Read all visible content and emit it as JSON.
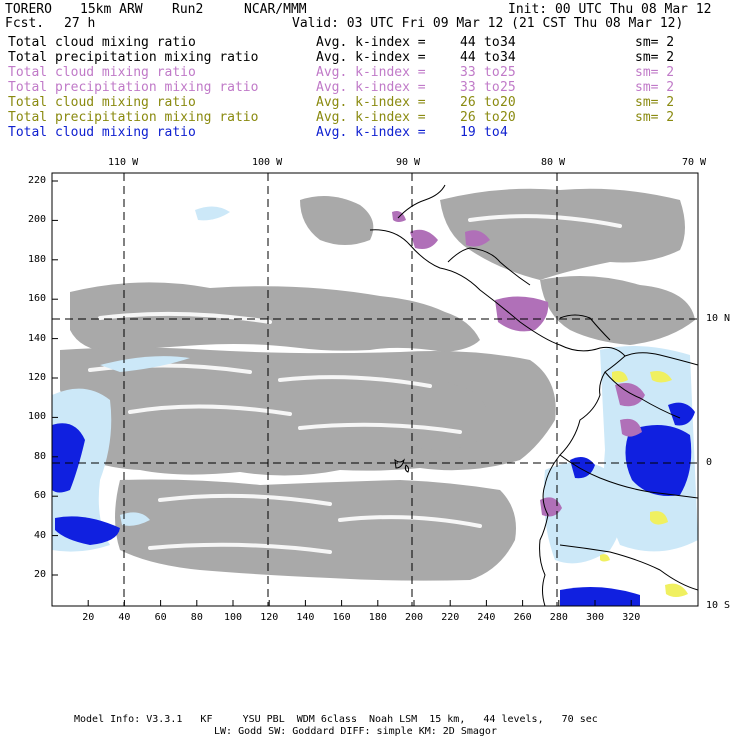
{
  "header": {
    "model": "TORERO",
    "resolution": "15km ARW",
    "run": "Run2",
    "org": "NCAR/MMM",
    "init": "Init: 00 UTC Thu 08 Mar 12",
    "fcst_label": "Fcst.",
    "fcst_value": "27 h",
    "valid": "Valid: 03 UTC Fri 09 Mar 12 (21 CST Thu 08 Mar 12)"
  },
  "legend": [
    {
      "field": "Total cloud mixing ratio",
      "index": "Avg. k-index =",
      "from": "44",
      "to_word": "to",
      "to": "34",
      "sm": "sm= 2",
      "color": "#000000"
    },
    {
      "field": "Total precipitation mixing ratio",
      "index": "Avg. k-index =",
      "from": "44",
      "to_word": "to",
      "to": "34",
      "sm": "sm= 2",
      "color": "#000000"
    },
    {
      "field": "Total cloud mixing ratio",
      "index": "Avg. k-index =",
      "from": "33",
      "to_word": "to",
      "to": "25",
      "sm": "sm= 2",
      "color": "#c07ac8"
    },
    {
      "field": "Total precipitation mixing ratio",
      "index": "Avg. k-index =",
      "from": "33",
      "to_word": "to",
      "to": "25",
      "sm": "sm= 2",
      "color": "#c07ac8"
    },
    {
      "field": "Total cloud mixing ratio",
      "index": "Avg. k-index =",
      "from": "26",
      "to_word": "to",
      "to": "20",
      "sm": "sm= 2",
      "color": "#8a8a10"
    },
    {
      "field": "Total precipitation mixing ratio",
      "index": "Avg. k-index =",
      "from": "26",
      "to_word": "to",
      "to": "20",
      "sm": "sm= 2",
      "color": "#8a8a10"
    },
    {
      "field": "Total cloud mixing ratio",
      "index": "Avg. k-index =",
      "from": "19",
      "to_word": "to",
      "to": "4",
      "sm": "",
      "color": "#1020d0"
    }
  ],
  "axes": {
    "lon_labels": [
      "110 W",
      "100 W",
      "90 W",
      "80 W",
      "70 W"
    ],
    "lat_labels": [
      "10 N",
      "0",
      "10 S"
    ],
    "x_ticks": [
      "20",
      "40",
      "60",
      "80",
      "100",
      "120",
      "140",
      "160",
      "180",
      "200",
      "220",
      "240",
      "260",
      "280",
      "300",
      "320"
    ],
    "y_ticks": [
      "220",
      "200",
      "180",
      "160",
      "140",
      "120",
      "100",
      "80",
      "60",
      "40",
      "20"
    ]
  },
  "colors": {
    "cloud_gray": "#a9a9a9",
    "purple": "#b070b8",
    "light_blue": "#cce8f8",
    "blue": "#1020e0",
    "yellow": "#f0f060"
  },
  "footer": {
    "line1": "Model Info: V3.3.1   KF     YSU PBL  WDM 6class  Noah LSM  15 km,   44 levels,   70 sec",
    "line2": "LW: Godd SW: Goddard DIFF: simple KM: 2D Smagor"
  }
}
